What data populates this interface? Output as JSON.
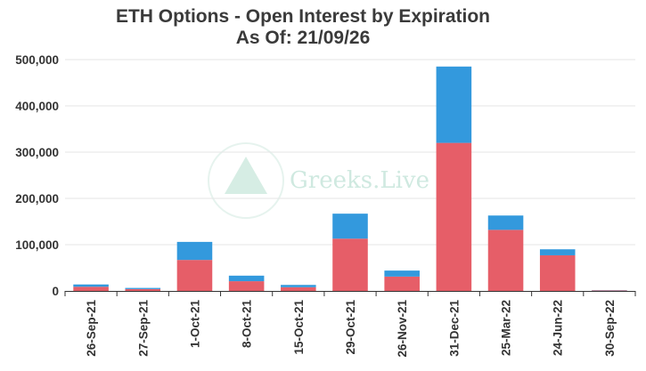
{
  "chart_data": {
    "type": "bar",
    "stacked": true,
    "title": "ETH Options - Open Interest by Expiration",
    "subtitle": "As Of: 21/09/26",
    "categories": [
      "26-Sep-21",
      "27-Sep-21",
      "1-Oct-21",
      "8-Oct-21",
      "15-Oct-21",
      "29-Oct-21",
      "26-Nov-21",
      "31-Dec-21",
      "25-Mar-22",
      "24-Jun-22",
      "30-Sep-22"
    ],
    "series": [
      {
        "color": "#e65e68",
        "values": [
          9000,
          4000,
          67000,
          21000,
          8000,
          113000,
          31000,
          320000,
          132000,
          77000,
          1000
        ]
      },
      {
        "color": "#3399dd",
        "values": [
          5000,
          2500,
          39000,
          12000,
          5000,
          54000,
          13000,
          165000,
          31000,
          13000,
          500
        ]
      }
    ],
    "ylim": [
      0,
      500000
    ],
    "yticks": [
      "0",
      "100,000",
      "200,000",
      "300,000",
      "400,000",
      "500,000"
    ],
    "grid": true,
    "watermark": "Greeks.Live"
  }
}
